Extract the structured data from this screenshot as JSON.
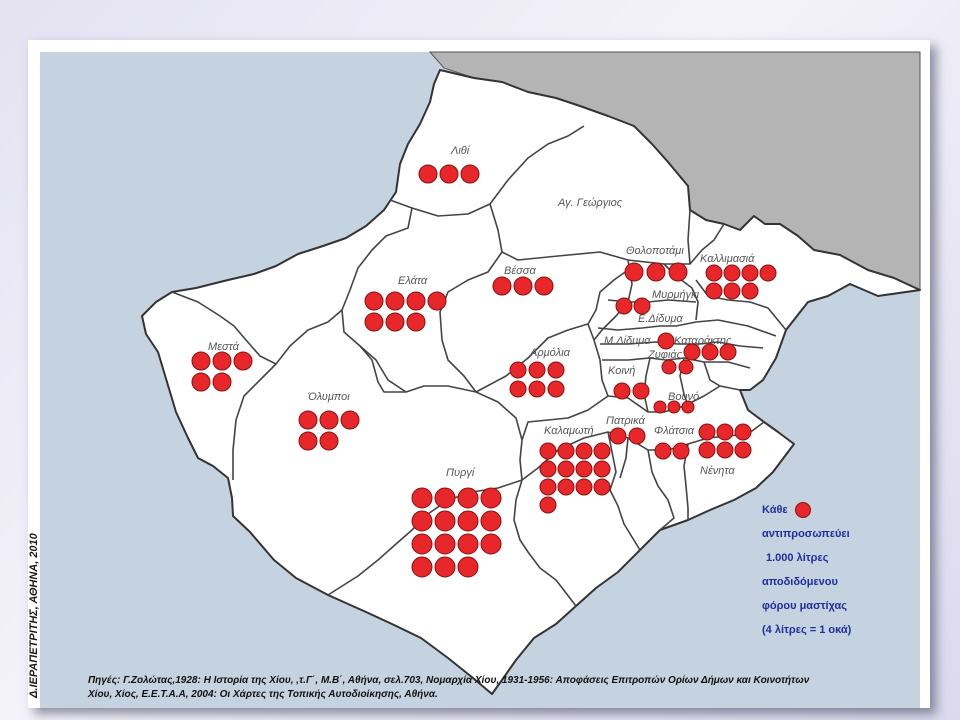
{
  "map": {
    "credit": "Δ.ΙΕΡΑΠΕΤΡΙΤΗΣ, ΑΘΗΝΑ, 2010",
    "sources": [
      "Πηγές: Γ.Ζολώτας,1928: Η Ιστορία της Χίου, ,τ.Γ΄, Μ.Β΄, Αθήνα, σελ.703, Νομαρχία Χίου, 1931-1956: Αποφάσεις Επιτροπών Ορίων Δήμων και Κοινοτήτων",
      "Χίου, Χίος, Ε.Ε.Τ.Α.Α, 2004: Οι Χάρτες της Τοπικής Αυτοδιοίκησης, Αθήνα."
    ],
    "colors": {
      "sea": "#c5d2e0",
      "land": "#ffffff",
      "outside": "#b4b4b4",
      "dot": "#e8272b",
      "legend": "#1e2f9c"
    },
    "legend": {
      "title": "Κάθε",
      "lines": [
        "αντιπροσωπεύει",
        "1.000 λίτρες",
        "αποδιδόμενου",
        "φόρου μαστίχας",
        "(4 λίτρες = 1 οκά)"
      ],
      "litres_per_dot": 1000
    },
    "villages": [
      {
        "name": "Λιθί",
        "dots": 3
      },
      {
        "name": "Αγ. Γεώργιος",
        "dots": 0
      },
      {
        "name": "Θολοποτάμι",
        "dots": 3
      },
      {
        "name": "Καλλιμασιά",
        "dots": 7
      },
      {
        "name": "Ελάτα",
        "dots": 7
      },
      {
        "name": "Βέσσα",
        "dots": 3
      },
      {
        "name": "Μυρμήγκι",
        "dots": 2
      },
      {
        "name": "Ε.Δίδυμα",
        "dots": 0
      },
      {
        "name": "Μ.Δίδυμα",
        "dots": 1
      },
      {
        "name": "Καταράκτης",
        "dots": 3
      },
      {
        "name": "Ζυφιάς",
        "dots": 2
      },
      {
        "name": "Μεστά",
        "dots": 5
      },
      {
        "name": "Αρμόλια",
        "dots": 6
      },
      {
        "name": "Κοινή",
        "dots": 2
      },
      {
        "name": "Όλυμποι",
        "dots": 5
      },
      {
        "name": "Βουνό",
        "dots": 3
      },
      {
        "name": "Πατρικά",
        "dots": 2
      },
      {
        "name": "Καλαμωτή",
        "dots": 13
      },
      {
        "name": "Φλάτσια",
        "dots": 2
      },
      {
        "name": "Νένητα",
        "dots": 6
      },
      {
        "name": "Πυργί",
        "dots": 15
      }
    ]
  }
}
